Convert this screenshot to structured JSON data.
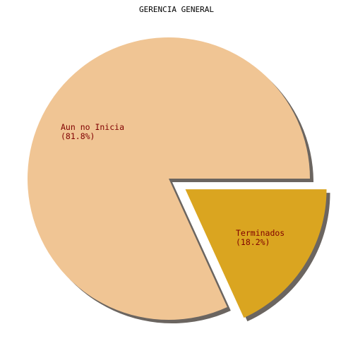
{
  "chart_data": {
    "type": "pie",
    "title": "GERENCIA GENERAL",
    "slices": [
      {
        "label": "Aun no Inicia",
        "percent_label": "(81.8%)",
        "value": 81.8,
        "color": "#F0C594",
        "exploded": false
      },
      {
        "label": "Terminados",
        "percent_label": "(18.2%)",
        "value": 18.2,
        "color": "#DAA520",
        "exploded": true
      }
    ],
    "shadow": true,
    "legend": "none",
    "label_color": "#800000",
    "shadow_color": "#6b6560"
  }
}
